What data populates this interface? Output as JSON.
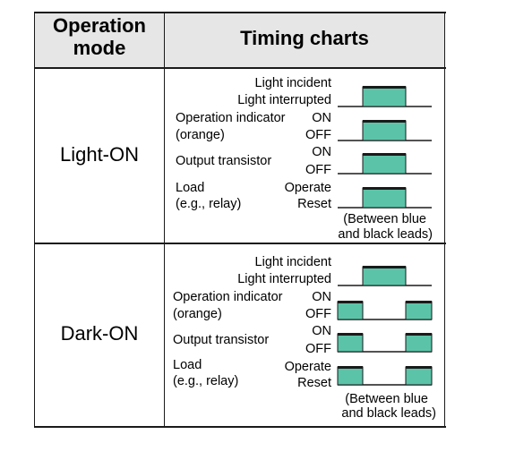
{
  "header": {
    "operation_mode": "Operation mode",
    "timing_charts": "Timing charts"
  },
  "rows": [
    {
      "mode": "Light-ON",
      "labels": {
        "light_incident": "Light incident",
        "light_interrupted": "Light interrupted",
        "operation_indicator": "Operation indicator",
        "orange": "(orange)",
        "on1": "ON",
        "off1": "OFF",
        "output_transistor": "Output transistor",
        "on2": "ON",
        "off2": "OFF",
        "load": "Load",
        "relay": "(e.g., relay)",
        "operate": "Operate",
        "reset": "Reset",
        "note1": "(Between blue",
        "note2": "and black leads)"
      }
    },
    {
      "mode": "Dark-ON",
      "labels": {
        "light_incident": "Light incident",
        "light_interrupted": "Light interrupted",
        "operation_indicator": "Operation indicator",
        "orange": "(orange)",
        "on1": "ON",
        "off1": "OFF",
        "output_transistor": "Output transistor",
        "on2": "ON",
        "off2": "OFF",
        "load": "Load",
        "relay": "(e.g., relay)",
        "operate": "Operate",
        "reset": "Reset",
        "note1": "(Between blue",
        "note2": "and black leads)"
      }
    }
  ],
  "colors": {
    "pulse_fill": "#5bc4a8",
    "header_bg": "#e6e6e6"
  }
}
